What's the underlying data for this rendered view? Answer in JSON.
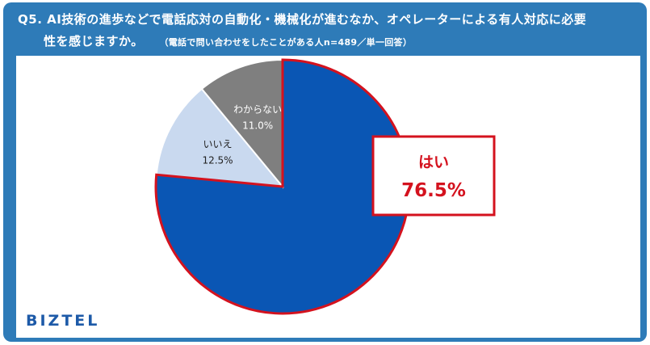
{
  "question": {
    "line1": "Q5. AI技術の進歩などで電話応対の自動化・機械化が進むなか、オペレーターによる有人対応に必要",
    "line2": "性を感じますか。",
    "note": "（電話で問い合わせをしたことがある人n=489／単一回答）"
  },
  "brand": "BIZTEL",
  "colors": {
    "frame": "#2e7bb8",
    "highlight": "#d4121e",
    "yes": "#0a56b4",
    "no": "#c9d9ef",
    "dontknow": "#7f7f7f"
  },
  "chart_data": {
    "type": "pie",
    "slices": [
      {
        "label": "はい",
        "value": 76.5,
        "value_label": "76.5%",
        "color": "#0a56b4"
      },
      {
        "label": "いいえ",
        "value": 12.5,
        "value_label": "12.5%",
        "color": "#c9d9ef"
      },
      {
        "label": "わからない",
        "value": 11.0,
        "value_label": "11.0%",
        "color": "#7f7f7f"
      }
    ]
  }
}
